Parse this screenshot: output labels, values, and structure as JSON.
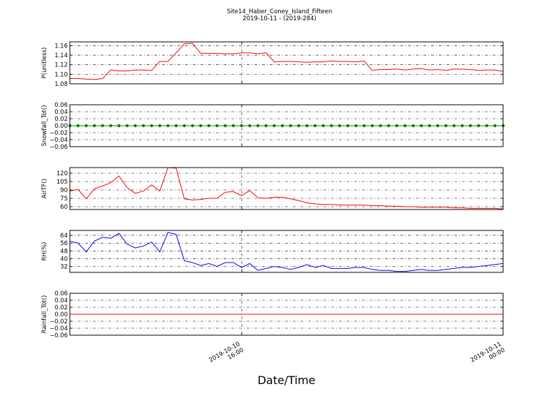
{
  "chart_data": {
    "type": "line",
    "title": "Site14_Haber_Coney_Island_Fifteen",
    "subtitle": "2019-10-11 - (2019-284)",
    "xlabel": "Date/Time",
    "grid": true,
    "x_tick_labels": [
      {
        "line1": "2019-10-10",
        "line2": "16:00"
      },
      {
        "line1": "2019-10-11",
        "line2": "00:00"
      }
    ],
    "panels": [
      {
        "ylabel": "P(unitless)",
        "ylim": [
          1.08,
          1.168
        ],
        "ytick_labels": [
          "1.08",
          "1.10",
          "1.12",
          "1.14",
          "1.16"
        ],
        "ytick_values": [
          1.08,
          1.1,
          1.12,
          1.14,
          1.16
        ],
        "color": "#ff0000",
        "markers": false,
        "values": [
          1.091,
          1.091,
          1.09,
          1.089,
          1.091,
          1.109,
          1.107,
          1.107,
          1.109,
          1.109,
          1.108,
          1.127,
          1.127,
          1.145,
          1.164,
          1.165,
          1.144,
          1.144,
          1.144,
          1.143,
          1.143,
          1.145,
          1.145,
          1.143,
          1.145,
          1.126,
          1.127,
          1.127,
          1.126,
          1.125,
          1.126,
          1.126,
          1.128,
          1.127,
          1.127,
          1.126,
          1.128,
          1.108,
          1.11,
          1.11,
          1.111,
          1.109,
          1.111,
          1.112,
          1.109,
          1.11,
          1.108,
          1.111,
          1.111,
          1.11,
          1.108,
          1.109,
          1.109,
          1.106
        ]
      },
      {
        "ylabel": "Snowfall_Tot()",
        "ylim": [
          -0.06,
          0.06
        ],
        "ytick_labels": [
          "−0.06",
          "−0.04",
          "−0.02",
          "0.00",
          "0.02",
          "0.04",
          "0.06"
        ],
        "ytick_values": [
          -0.06,
          -0.04,
          -0.02,
          0.0,
          0.02,
          0.04,
          0.06
        ],
        "color": "#008000",
        "markers": true,
        "values": [
          0,
          0,
          0,
          0,
          0,
          0,
          0,
          0,
          0,
          0,
          0,
          0,
          0,
          0,
          0,
          0,
          0,
          0,
          0,
          0,
          0,
          0,
          0,
          0,
          0,
          0,
          0,
          0,
          0,
          0,
          0,
          0,
          0,
          0,
          0,
          0,
          0,
          0,
          0,
          0,
          0,
          0,
          0,
          0,
          0,
          0,
          0,
          0,
          0,
          0,
          0,
          0,
          0,
          0
        ]
      },
      {
        "ylabel": "AirTF()",
        "ylim": [
          55,
          130
        ],
        "ytick_labels": [
          "60",
          "75",
          "90",
          "105",
          "120"
        ],
        "ytick_values": [
          60,
          75,
          90,
          105,
          120
        ],
        "color": "#ff0000",
        "markers": false,
        "values": [
          88,
          91,
          74,
          92,
          97,
          103,
          115,
          94,
          84,
          88,
          99,
          88,
          130,
          129,
          74,
          72,
          73,
          75,
          75,
          86,
          87,
          80,
          89,
          76,
          75,
          77,
          77,
          74,
          71,
          67,
          65,
          64,
          64,
          63,
          63,
          63,
          63,
          62,
          62,
          61,
          61,
          60,
          60,
          59,
          59,
          59,
          59,
          58,
          58,
          57,
          57,
          57,
          57,
          56
        ]
      },
      {
        "ylabel": "RH(%)",
        "ylim": [
          26,
          69
        ],
        "ytick_labels": [
          "32",
          "40",
          "48",
          "56",
          "64"
        ],
        "ytick_values": [
          32,
          40,
          48,
          56,
          64
        ],
        "color": "#0000ff",
        "markers": false,
        "values": [
          58,
          56,
          47,
          58,
          62,
          61,
          66,
          55,
          51,
          53,
          57,
          47,
          67,
          65,
          38,
          36,
          33,
          35,
          32,
          36,
          36,
          31,
          35,
          28,
          30,
          32,
          31,
          29,
          31,
          34,
          31,
          33,
          30,
          30,
          30,
          31,
          31,
          29,
          28,
          28,
          27,
          27,
          28,
          29,
          28,
          28,
          29,
          30,
          31,
          31,
          32,
          33,
          34,
          35
        ]
      },
      {
        "ylabel": "Rainfall_Tot()",
        "ylim": [
          -0.06,
          0.06
        ],
        "ytick_labels": [
          "−0.06",
          "−0.04",
          "−0.02",
          "0.00",
          "0.02",
          "0.04",
          "0.06"
        ],
        "ytick_values": [
          -0.06,
          -0.04,
          -0.02,
          0.0,
          0.02,
          0.04,
          0.06
        ],
        "color": "#ff0000",
        "markers": false,
        "values": [
          0,
          0,
          0,
          0,
          0,
          0,
          0,
          0,
          0,
          0,
          0,
          0,
          0,
          0,
          0,
          0,
          0,
          0,
          0,
          0,
          0,
          0,
          0,
          0,
          0,
          0,
          0,
          0,
          0,
          0,
          0,
          0,
          0,
          0,
          0,
          0,
          0,
          0,
          0,
          0,
          0,
          0,
          0,
          0,
          0,
          0,
          0,
          0,
          0,
          0,
          0,
          0,
          0,
          0
        ]
      }
    ]
  }
}
